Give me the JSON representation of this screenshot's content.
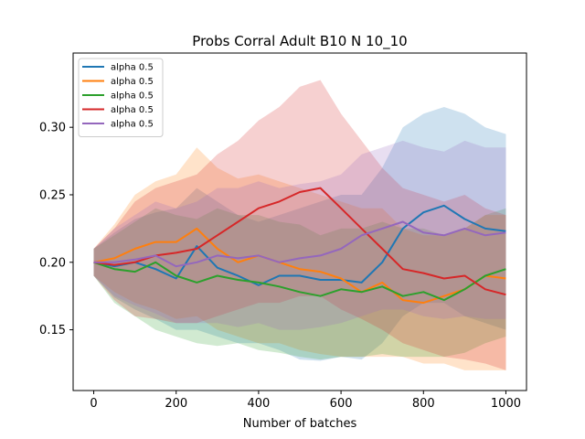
{
  "chart_data": {
    "type": "line",
    "title": "Probs Corral Adult B10 N 10_10",
    "xlabel": "Number of batches",
    "ylabel": "",
    "xlim": [
      -50,
      1050
    ],
    "ylim": [
      0.105,
      0.355
    ],
    "xticks": [
      0,
      200,
      400,
      600,
      800,
      1000
    ],
    "xtick_labels": [
      "0",
      "200",
      "400",
      "600",
      "800",
      "1000"
    ],
    "yticks": [
      0.15,
      0.2,
      0.25,
      0.3
    ],
    "ytick_labels": [
      "0.15",
      "0.20",
      "0.25",
      "0.30"
    ],
    "grid": false,
    "legend_position": "upper-left",
    "band_opacity": 0.22,
    "x": [
      0,
      50,
      100,
      150,
      200,
      250,
      300,
      350,
      400,
      450,
      500,
      550,
      600,
      650,
      700,
      750,
      800,
      850,
      900,
      950,
      1000
    ],
    "series": [
      {
        "name": "alpha 0.5",
        "color": "#1f77b4",
        "values": [
          0.2,
          0.197,
          0.2,
          0.195,
          0.188,
          0.212,
          0.196,
          0.19,
          0.183,
          0.19,
          0.19,
          0.187,
          0.187,
          0.185,
          0.2,
          0.225,
          0.237,
          0.242,
          0.232,
          0.225,
          0.223
        ],
        "lower": [
          0.19,
          0.174,
          0.165,
          0.158,
          0.15,
          0.15,
          0.145,
          0.14,
          0.14,
          0.135,
          0.128,
          0.127,
          0.13,
          0.128,
          0.14,
          0.16,
          0.17,
          0.17,
          0.16,
          0.155,
          0.15
        ],
        "upper": [
          0.21,
          0.222,
          0.232,
          0.237,
          0.24,
          0.255,
          0.245,
          0.235,
          0.23,
          0.235,
          0.24,
          0.245,
          0.25,
          0.25,
          0.27,
          0.3,
          0.31,
          0.315,
          0.31,
          0.3,
          0.295
        ]
      },
      {
        "name": "alpha 0.5",
        "color": "#ff7f0e",
        "values": [
          0.2,
          0.203,
          0.21,
          0.215,
          0.215,
          0.225,
          0.21,
          0.2,
          0.205,
          0.2,
          0.195,
          0.193,
          0.188,
          0.178,
          0.185,
          0.172,
          0.17,
          0.175,
          0.18,
          0.19,
          0.188
        ],
        "lower": [
          0.19,
          0.178,
          0.17,
          0.165,
          0.158,
          0.16,
          0.15,
          0.145,
          0.14,
          0.14,
          0.135,
          0.132,
          0.13,
          0.13,
          0.13,
          0.13,
          0.125,
          0.125,
          0.12,
          0.12,
          0.12
        ],
        "upper": [
          0.21,
          0.228,
          0.25,
          0.26,
          0.265,
          0.285,
          0.27,
          0.262,
          0.265,
          0.26,
          0.255,
          0.25,
          0.245,
          0.24,
          0.24,
          0.225,
          0.22,
          0.22,
          0.225,
          0.235,
          0.235
        ]
      },
      {
        "name": "alpha 0.5",
        "color": "#2ca02c",
        "values": [
          0.2,
          0.195,
          0.193,
          0.2,
          0.19,
          0.185,
          0.19,
          0.187,
          0.185,
          0.182,
          0.178,
          0.175,
          0.18,
          0.178,
          0.182,
          0.175,
          0.178,
          0.172,
          0.18,
          0.19,
          0.195
        ],
        "lower": [
          0.19,
          0.17,
          0.16,
          0.15,
          0.145,
          0.14,
          0.138,
          0.14,
          0.135,
          0.133,
          0.13,
          0.128,
          0.13,
          0.13,
          0.132,
          0.13,
          0.13,
          0.13,
          0.133,
          0.14,
          0.145
        ],
        "upper": [
          0.21,
          0.22,
          0.23,
          0.24,
          0.235,
          0.232,
          0.24,
          0.235,
          0.235,
          0.23,
          0.228,
          0.22,
          0.225,
          0.225,
          0.23,
          0.225,
          0.225,
          0.22,
          0.225,
          0.235,
          0.24
        ]
      },
      {
        "name": "alpha 0.5",
        "color": "#d62728",
        "values": [
          0.2,
          0.198,
          0.2,
          0.205,
          0.207,
          0.21,
          0.22,
          0.23,
          0.24,
          0.245,
          0.252,
          0.255,
          0.24,
          0.225,
          0.21,
          0.195,
          0.192,
          0.188,
          0.19,
          0.18,
          0.176
        ],
        "lower": [
          0.19,
          0.172,
          0.16,
          0.158,
          0.155,
          0.155,
          0.16,
          0.165,
          0.17,
          0.17,
          0.175,
          0.175,
          0.165,
          0.158,
          0.15,
          0.14,
          0.135,
          0.13,
          0.128,
          0.125,
          0.12
        ],
        "upper": [
          0.21,
          0.225,
          0.245,
          0.255,
          0.26,
          0.265,
          0.28,
          0.29,
          0.305,
          0.315,
          0.33,
          0.335,
          0.31,
          0.29,
          0.27,
          0.255,
          0.25,
          0.245,
          0.25,
          0.24,
          0.235
        ]
      },
      {
        "name": "alpha 0.5",
        "color": "#9467bd",
        "values": [
          0.2,
          0.2,
          0.202,
          0.205,
          0.197,
          0.2,
          0.205,
          0.203,
          0.205,
          0.2,
          0.203,
          0.205,
          0.21,
          0.22,
          0.225,
          0.23,
          0.222,
          0.22,
          0.225,
          0.22,
          0.222
        ],
        "lower": [
          0.19,
          0.175,
          0.168,
          0.162,
          0.155,
          0.155,
          0.155,
          0.152,
          0.155,
          0.15,
          0.15,
          0.152,
          0.155,
          0.16,
          0.165,
          0.165,
          0.16,
          0.158,
          0.16,
          0.158,
          0.158
        ],
        "upper": [
          0.21,
          0.225,
          0.235,
          0.245,
          0.24,
          0.245,
          0.255,
          0.255,
          0.26,
          0.255,
          0.258,
          0.26,
          0.265,
          0.28,
          0.285,
          0.29,
          0.285,
          0.282,
          0.29,
          0.285,
          0.285
        ]
      }
    ]
  }
}
